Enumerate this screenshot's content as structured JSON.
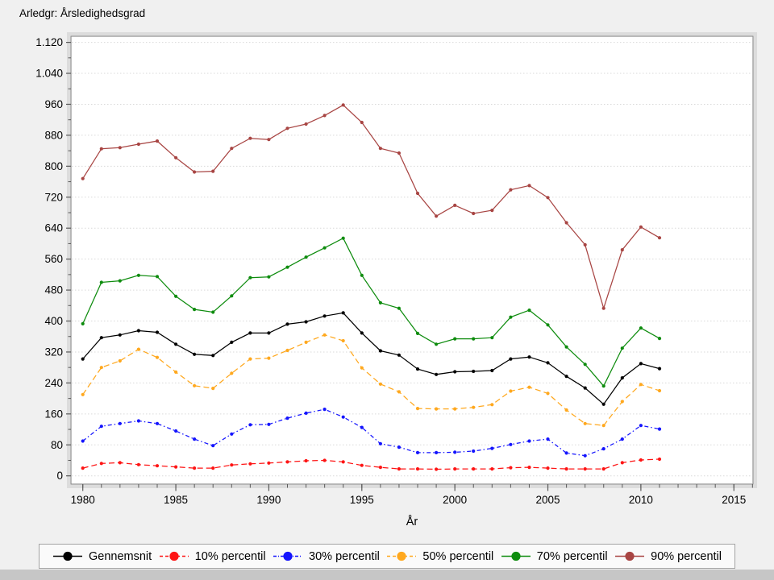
{
  "title": "Arledgr: Årsledighedsgrad",
  "x_axis": {
    "label": "År",
    "tick_labels": [
      "1980",
      "1985",
      "1990",
      "1995",
      "2000",
      "2005",
      "2010",
      "2015"
    ],
    "tick_values": [
      1980,
      1985,
      1990,
      1995,
      2000,
      2005,
      2010,
      2015
    ],
    "minor_tick_start": 1980,
    "minor_tick_end": 2016,
    "minor_step": 1
  },
  "y_axis": {
    "tick_labels": [
      "0",
      "80",
      "160",
      "240",
      "320",
      "400",
      "480",
      "560",
      "640",
      "720",
      "800",
      "880",
      "960",
      "1.040",
      "1.120"
    ],
    "tick_values": [
      0,
      80,
      160,
      240,
      320,
      400,
      480,
      560,
      640,
      720,
      800,
      880,
      960,
      1040,
      1120
    ],
    "minor_step": 40
  },
  "legend": {
    "items": [
      "Gennemsnit",
      "10% percentil",
      "30% percentil",
      "50% percentil",
      "70% percentil",
      "90% percentil"
    ]
  },
  "colors": {
    "background": "#f0f0f0",
    "plot_background": "#ffffff",
    "gridline": "#d9d9d9",
    "border": "#8f8f8f",
    "border_halo": "#dcdcdc",
    "tick": "#5a5a5a",
    "bottom_bar": "#c6c6c6"
  },
  "chart_data": {
    "type": "line",
    "title": "Arledgr: Årsledighedsgrad",
    "xlabel": "År",
    "ylabel": "",
    "xlim": [
      1980,
      2016
    ],
    "ylim": [
      0,
      1120
    ],
    "grid": "horizontal-dotted",
    "legend_position": "bottom",
    "x": [
      1980,
      1981,
      1982,
      1983,
      1984,
      1985,
      1986,
      1987,
      1988,
      1989,
      1990,
      1991,
      1992,
      1993,
      1994,
      1995,
      1996,
      1997,
      1998,
      1999,
      2000,
      2001,
      2002,
      2003,
      2004,
      2005,
      2006,
      2007,
      2008,
      2009,
      2010,
      2011
    ],
    "series": [
      {
        "name": "Gennemsnit",
        "color": "#000000",
        "dash": "solid",
        "values": [
          302,
          357,
          364,
          375,
          371,
          340,
          314,
          311,
          345,
          369,
          369,
          392,
          398,
          413,
          421,
          369,
          323,
          312,
          276,
          262,
          269,
          270,
          272,
          302,
          307,
          292,
          257,
          227,
          185,
          253,
          290,
          277
        ]
      },
      {
        "name": "10% percentil",
        "color": "#fe1414",
        "dash": "dash",
        "values": [
          20,
          32,
          34,
          29,
          26,
          23,
          20,
          20,
          28,
          31,
          33,
          36,
          39,
          40,
          36,
          27,
          22,
          18,
          18,
          17,
          18,
          18,
          18,
          21,
          22,
          20,
          18,
          18,
          18,
          34,
          41,
          43
        ]
      },
      {
        "name": "30% percentil",
        "color": "#1414fe",
        "dash": "dashdot",
        "values": [
          90,
          128,
          135,
          142,
          135,
          116,
          95,
          78,
          108,
          132,
          133,
          149,
          162,
          172,
          152,
          125,
          83,
          74,
          60,
          60,
          61,
          64,
          71,
          81,
          90,
          95,
          59,
          52,
          70,
          95,
          130,
          121
        ]
      },
      {
        "name": "50% percentil",
        "color": "#ffa81e",
        "dash": "dash",
        "values": [
          210,
          280,
          297,
          327,
          306,
          268,
          233,
          226,
          265,
          302,
          304,
          324,
          345,
          364,
          349,
          279,
          237,
          217,
          174,
          173,
          173,
          177,
          184,
          219,
          229,
          213,
          170,
          135,
          130,
          192,
          236,
          220
        ]
      },
      {
        "name": "70% percentil",
        "color": "#0e8c0e",
        "dash": "solid",
        "values": [
          393,
          500,
          504,
          518,
          515,
          464,
          430,
          423,
          465,
          512,
          514,
          539,
          565,
          589,
          614,
          518,
          447,
          433,
          368,
          340,
          354,
          354,
          357,
          410,
          428,
          390,
          333,
          288,
          232,
          330,
          382,
          355
        ]
      },
      {
        "name": "90% percentil",
        "color": "#a84543",
        "dash": "solid",
        "values": [
          768,
          845,
          848,
          857,
          865,
          822,
          785,
          787,
          846,
          872,
          869,
          898,
          909,
          931,
          958,
          913,
          846,
          834,
          730,
          671,
          699,
          678,
          686,
          739,
          750,
          719,
          654,
          597,
          433,
          584,
          643,
          615
        ]
      }
    ]
  }
}
